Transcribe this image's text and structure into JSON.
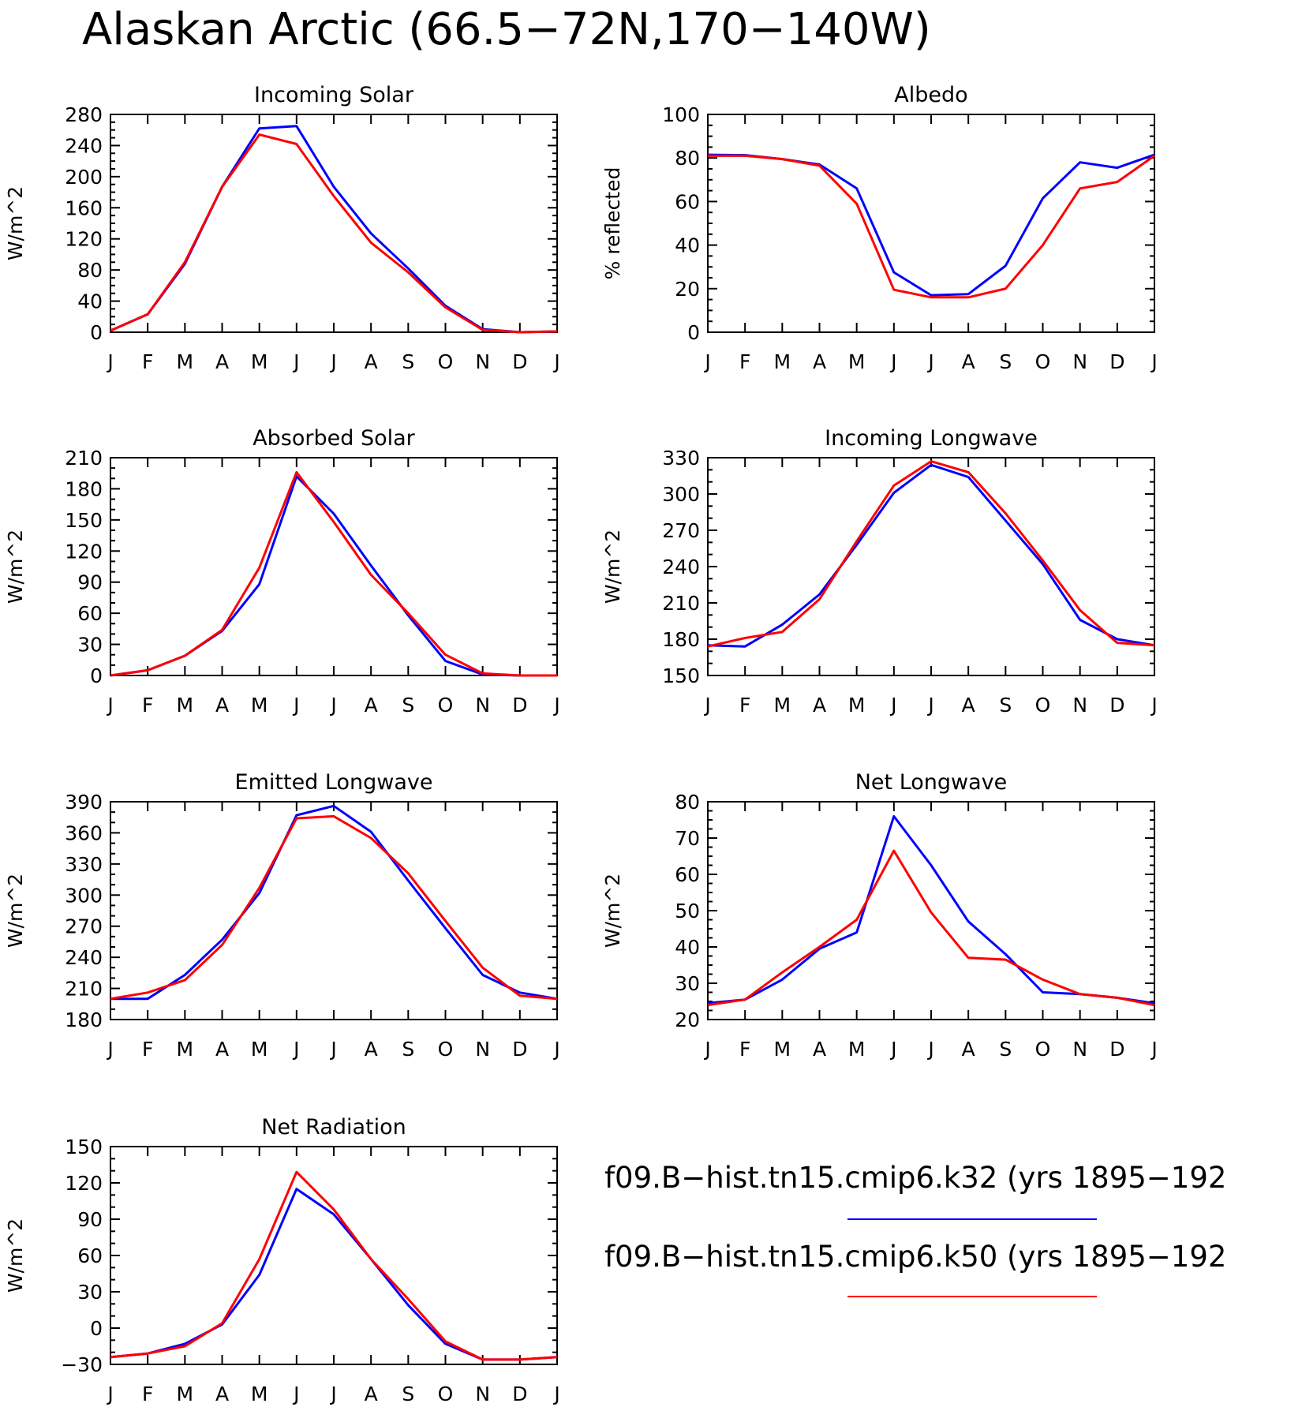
{
  "title": "Alaskan Arctic (66.5−72N,170−140W)",
  "month_labels": [
    "J",
    "F",
    "M",
    "A",
    "M",
    "J",
    "J",
    "A",
    "S",
    "O",
    "N",
    "D",
    "J"
  ],
  "colors": {
    "k32": "#0000ff",
    "k50": "#ff0000",
    "axis": "#000000"
  },
  "legend": [
    {
      "label": "f09.B−hist.tn15.cmip6.k32 (yrs 1895−192",
      "color": "#0000ff"
    },
    {
      "label": "f09.B−hist.tn15.cmip6.k50 (yrs 1895−192",
      "color": "#ff0000"
    }
  ],
  "chart_data": [
    {
      "type": "line",
      "title": "Incoming Solar",
      "ylabel": "W/m^2",
      "x": [
        "J",
        "F",
        "M",
        "A",
        "M",
        "J",
        "J",
        "A",
        "S",
        "O",
        "N",
        "D",
        "J"
      ],
      "ylim": [
        0,
        280
      ],
      "yticks": [
        0,
        40,
        80,
        120,
        160,
        200,
        240,
        280
      ],
      "minor_per_major": 4,
      "series": [
        {
          "values": [
            2,
            23,
            88,
            187,
            262,
            265,
            187,
            127,
            82,
            34,
            4,
            0,
            1
          ]
        },
        {
          "values": [
            2,
            23,
            90,
            187,
            254,
            242,
            175,
            115,
            77,
            32,
            3,
            0,
            1
          ]
        }
      ]
    },
    {
      "type": "line",
      "title": "Albedo",
      "ylabel": "% reflected",
      "x": [
        "J",
        "F",
        "M",
        "A",
        "M",
        "J",
        "J",
        "A",
        "S",
        "O",
        "N",
        "D",
        "J"
      ],
      "ylim": [
        0,
        100
      ],
      "yticks": [
        0,
        20,
        40,
        60,
        80,
        100
      ],
      "minor_per_major": 4,
      "series": [
        {
          "values": [
            81.5,
            81.3,
            79.5,
            77,
            66,
            27.5,
            17,
            17.5,
            30.5,
            61.5,
            78,
            75.5,
            81.5
          ]
        },
        {
          "values": [
            81,
            81,
            79.5,
            76.5,
            59,
            19.5,
            16,
            16,
            20,
            40,
            66,
            69,
            81
          ]
        }
      ]
    },
    {
      "type": "line",
      "title": "Absorbed Solar",
      "ylabel": "W/m^2",
      "x": [
        "J",
        "F",
        "M",
        "A",
        "M",
        "J",
        "J",
        "A",
        "S",
        "O",
        "N",
        "D",
        "J"
      ],
      "ylim": [
        0,
        210
      ],
      "yticks": [
        0,
        30,
        60,
        90,
        120,
        150,
        180,
        210
      ],
      "minor_per_major": 3,
      "series": [
        {
          "values": [
            0,
            5,
            19,
            43,
            88,
            192,
            156,
            106,
            58,
            14,
            1,
            0,
            0
          ]
        },
        {
          "values": [
            0,
            5,
            19,
            44,
            104,
            196,
            148,
            97,
            60,
            20,
            2,
            0,
            0
          ]
        }
      ]
    },
    {
      "type": "line",
      "title": "Incoming Longwave",
      "ylabel": "W/m^2",
      "x": [
        "J",
        "F",
        "M",
        "A",
        "M",
        "J",
        "J",
        "A",
        "S",
        "O",
        "N",
        "D",
        "J"
      ],
      "ylim": [
        150,
        330
      ],
      "yticks": [
        150,
        180,
        210,
        240,
        270,
        300,
        330
      ],
      "minor_per_major": 3,
      "series": [
        {
          "values": [
            175,
            174,
            192,
            217,
            258,
            301,
            324,
            314,
            278,
            242,
            196,
            180,
            175
          ]
        },
        {
          "values": [
            174,
            181,
            186,
            213,
            261,
            307,
            327,
            318,
            284,
            245,
            204,
            177,
            175
          ]
        }
      ]
    },
    {
      "type": "line",
      "title": "Emitted Longwave",
      "ylabel": "W/m^2",
      "x": [
        "J",
        "F",
        "M",
        "A",
        "M",
        "J",
        "J",
        "A",
        "S",
        "O",
        "N",
        "D",
        "J"
      ],
      "ylim": [
        180,
        390
      ],
      "yticks": [
        180,
        210,
        240,
        270,
        300,
        330,
        360,
        390
      ],
      "minor_per_major": 3,
      "series": [
        {
          "values": [
            200,
            200,
            223,
            257,
            302,
            377,
            386,
            361,
            314,
            268,
            223,
            206,
            200
          ]
        },
        {
          "values": [
            200,
            206,
            218,
            252,
            307,
            374,
            376,
            355,
            321,
            275,
            230,
            203,
            200
          ]
        }
      ]
    },
    {
      "type": "line",
      "title": "Net Longwave",
      "ylabel": "W/m^2",
      "x": [
        "J",
        "F",
        "M",
        "A",
        "M",
        "J",
        "J",
        "A",
        "S",
        "O",
        "N",
        "D",
        "J"
      ],
      "ylim": [
        20,
        80
      ],
      "yticks": [
        20,
        30,
        40,
        50,
        60,
        70,
        80
      ],
      "minor_per_major": 4,
      "series": [
        {
          "values": [
            24.5,
            25.5,
            31,
            39.5,
            44,
            76,
            62.5,
            47,
            38,
            27.5,
            27,
            26,
            24.5
          ]
        },
        {
          "values": [
            24,
            25.5,
            33,
            40,
            47.5,
            66.5,
            49.5,
            37,
            36.5,
            31,
            27,
            26,
            24
          ]
        }
      ]
    },
    {
      "type": "line",
      "title": "Net Radiation",
      "ylabel": "W/m^2",
      "x": [
        "J",
        "F",
        "M",
        "A",
        "M",
        "J",
        "J",
        "A",
        "S",
        "O",
        "N",
        "D",
        "J"
      ],
      "ylim": [
        -30,
        150
      ],
      "yticks": [
        -30,
        0,
        30,
        60,
        90,
        120,
        150
      ],
      "minor_per_major": 3,
      "series": [
        {
          "values": [
            -24,
            -21,
            -13,
            3,
            44,
            115,
            94,
            57,
            19,
            -13,
            -26,
            -26,
            -24
          ]
        },
        {
          "values": [
            -24,
            -21,
            -15,
            4,
            57,
            129,
            98,
            57,
            24,
            -11,
            -26,
            -26,
            -24
          ]
        }
      ]
    }
  ]
}
